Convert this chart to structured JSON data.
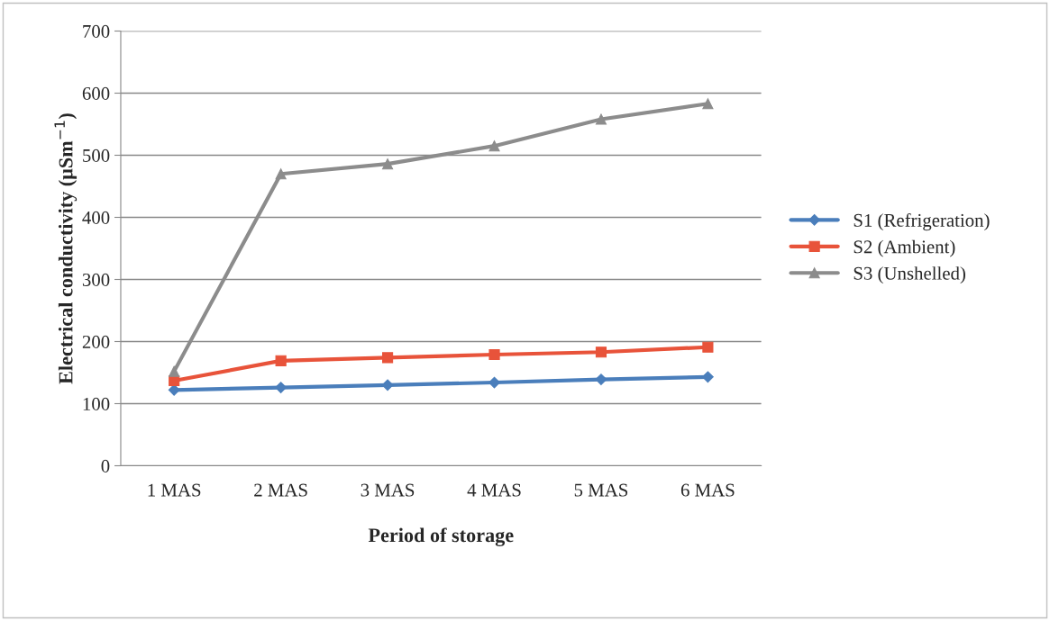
{
  "chart_data": {
    "type": "line",
    "xlabel": "Period of storage",
    "ylabel": "Electrical conductivity (μSm$^{−1}$)",
    "categories": [
      "1 MAS",
      "2 MAS",
      "3 MAS",
      "4 MAS",
      "5 MAS",
      "6 MAS"
    ],
    "series": [
      {
        "name": "S1 (Refrigeration)",
        "color": "#4a7ebb",
        "marker": "diamond",
        "values": [
          122,
          126,
          130,
          134,
          139,
          143
        ]
      },
      {
        "name": "S2 (Ambient)",
        "color": "#e8533a",
        "marker": "square",
        "values": [
          137,
          169,
          174,
          179,
          183,
          191
        ]
      },
      {
        "name": "S3 (Unshelled)",
        "color": "#8c8c8c",
        "marker": "triangle",
        "values": [
          152,
          470,
          486,
          515,
          558,
          583
        ]
      }
    ],
    "ylim": [
      0,
      700
    ],
    "yticks": [
      0,
      100,
      200,
      300,
      400,
      500,
      600,
      700
    ],
    "grid": "y",
    "legend": "right",
    "line_style": "solid"
  }
}
